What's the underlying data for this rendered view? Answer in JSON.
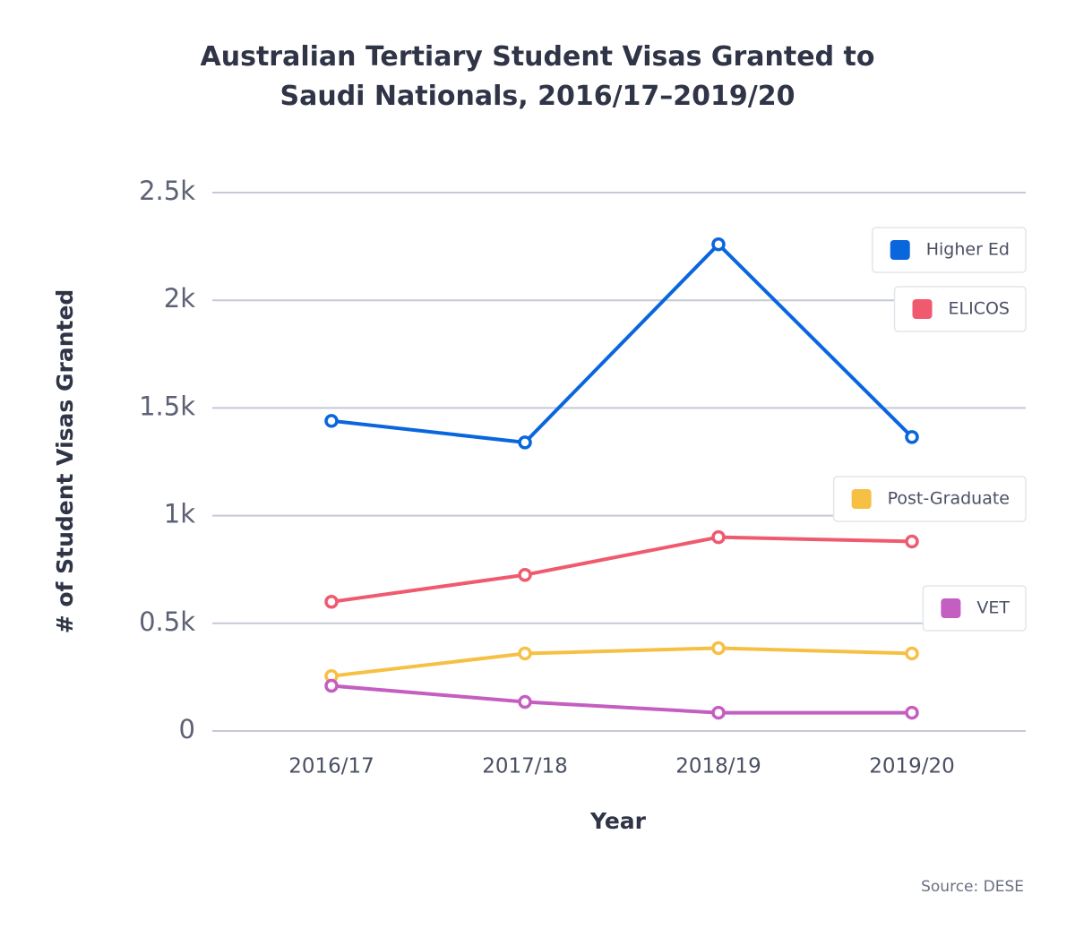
{
  "chart_data": {
    "type": "line",
    "title": "Australian Tertiary Student Visas Granted to Saudi Nationals, 2016/17–2019/20",
    "x_label": "Year",
    "y_label": "# of Student Visas Granted",
    "source": "Source: DESE",
    "categories": [
      "2016/17",
      "2017/18",
      "2018/19",
      "2019/20"
    ],
    "series": [
      {
        "name": "Higher Ed",
        "color": "#0a66dc",
        "values": [
          1440,
          1340,
          2260,
          1365
        ]
      },
      {
        "name": "ELICOS",
        "color": "#ef5a6f",
        "values": [
          600,
          725,
          900,
          880
        ]
      },
      {
        "name": "Post-Graduate",
        "color": "#f6c044",
        "values": [
          255,
          360,
          385,
          360
        ]
      },
      {
        "name": "VET",
        "color": "#c45ec0",
        "values": [
          210,
          135,
          85,
          85
        ]
      }
    ],
    "ylim": [
      0,
      2500
    ],
    "yticks": [
      0,
      {
        "value": 500,
        "label": "0.5k"
      },
      {
        "value": 1000,
        "label": "1k"
      },
      {
        "value": 1500,
        "label": "1.5k"
      },
      {
        "value": 2000,
        "label": "2k"
      },
      {
        "value": 2500,
        "label": "2.5k"
      }
    ],
    "grid": true
  }
}
